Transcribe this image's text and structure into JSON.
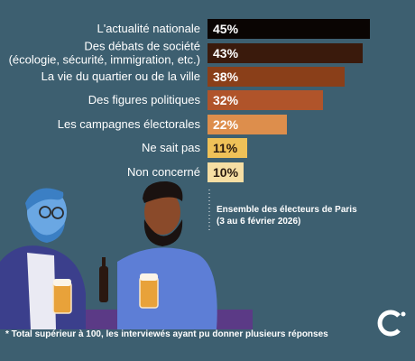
{
  "chart_data": {
    "type": "bar",
    "orientation": "horizontal",
    "categories": [
      [
        "L'actualité nationale"
      ],
      [
        "Des débats de société",
        "(écologie, sécurité, immigration, etc.)"
      ],
      [
        "La vie du quartier ou de la ville"
      ],
      [
        "Des figures politiques"
      ],
      [
        "Les campagnes électorales"
      ],
      [
        "Ne sait pas"
      ],
      [
        "Non concerné"
      ]
    ],
    "values": [
      45,
      43,
      38,
      32,
      22,
      11,
      10
    ],
    "value_labels": [
      "45%",
      "43%",
      "38%",
      "32%",
      "22%",
      "11%",
      "10%"
    ],
    "unit": "%",
    "xlim": [
      0,
      45
    ],
    "grid": false,
    "legend": "none",
    "bar_colors": [
      "#0a0503",
      "#3a1a0c",
      "#8a3f19",
      "#b0542a",
      "#dd8e4c",
      "#efc158",
      "#f6dea3"
    ],
    "label_colors": [
      "#ffffff",
      "#ffffff",
      "#ffffff",
      "#ffffff",
      "#ffffff",
      "#2a1a10",
      "#2a1a10"
    ]
  },
  "note": {
    "line1": "Ensemble des électeurs de Paris",
    "line2": "(3 au 6 février 2026)"
  },
  "footnote": "* Total supérieur à 100, les interviewés ayant pu donner plusieurs réponses",
  "colors": {
    "background": "#3d5f70",
    "text": "#ffffff"
  },
  "icons": {
    "illustration": "two-men-drinking-beer-illustration",
    "logo": "brand-c-logo"
  }
}
